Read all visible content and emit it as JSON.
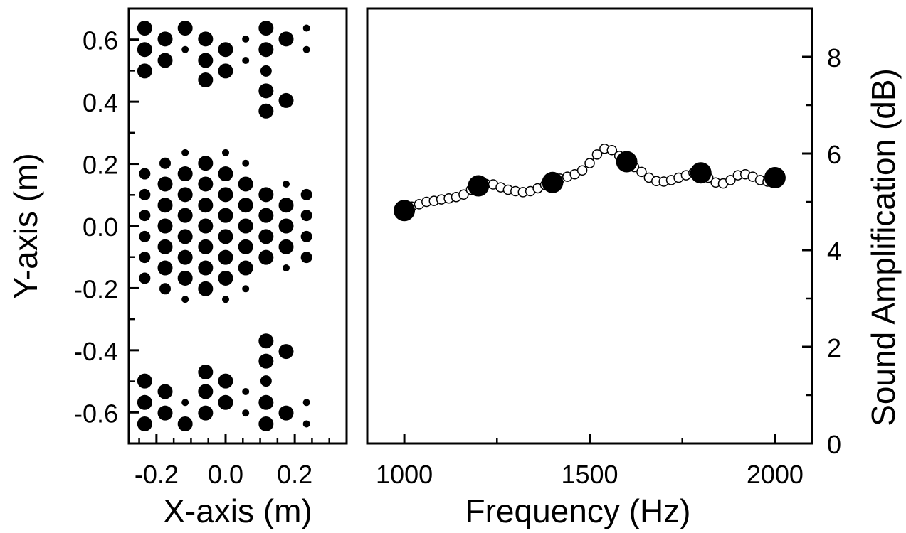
{
  "chart_data": [
    {
      "type": "scatter",
      "xlabel": "X-axis (m)",
      "ylabel": "Y-axis (m)",
      "xlim": [
        -0.28,
        0.35
      ],
      "ylim": [
        -0.7,
        0.7
      ],
      "xticks": [
        -0.2,
        0.0,
        0.2
      ],
      "xtick_labels": [
        "-0.2",
        "0.0",
        "0.2"
      ],
      "xminor": [
        -0.25,
        -0.15,
        -0.1,
        -0.05,
        0.05,
        0.1,
        0.15,
        0.25,
        0.3
      ],
      "yticks": [
        -0.6,
        -0.4,
        -0.2,
        0.0,
        0.2,
        0.4,
        0.6
      ],
      "ytick_labels": [
        "-0.6",
        "-0.4",
        "-0.2",
        "0.0",
        "0.2",
        "0.4",
        "0.6"
      ],
      "yminor": [
        -0.5,
        -0.3,
        -0.1,
        0.1,
        0.3,
        0.5
      ],
      "point_color": "#000000",
      "point_scale": "relative marker size 1-3",
      "series": [
        {
          "points": [
            {
              "x": -0.234,
              "y": 0.637,
              "size": 3
            },
            {
              "x": -0.234,
              "y": 0.568,
              "size": 3
            },
            {
              "x": -0.234,
              "y": 0.499,
              "size": 3
            },
            {
              "x": -0.175,
              "y": 0.602,
              "size": 3
            },
            {
              "x": -0.175,
              "y": 0.533,
              "size": 3
            },
            {
              "x": -0.117,
              "y": 0.637,
              "size": 3
            },
            {
              "x": -0.117,
              "y": 0.568,
              "size": 1
            },
            {
              "x": -0.058,
              "y": 0.602,
              "size": 3
            },
            {
              "x": -0.058,
              "y": 0.533,
              "size": 3
            },
            {
              "x": -0.058,
              "y": 0.47,
              "size": 3
            },
            {
              "x": 0.0,
              "y": 0.568,
              "size": 3
            },
            {
              "x": 0.0,
              "y": 0.499,
              "size": 3
            },
            {
              "x": 0.058,
              "y": 0.602,
              "size": 1
            },
            {
              "x": 0.058,
              "y": 0.533,
              "size": 1
            },
            {
              "x": 0.117,
              "y": 0.637,
              "size": 3
            },
            {
              "x": 0.117,
              "y": 0.568,
              "size": 3
            },
            {
              "x": 0.117,
              "y": 0.499,
              "size": 2
            },
            {
              "x": 0.117,
              "y": 0.435,
              "size": 3
            },
            {
              "x": 0.117,
              "y": 0.37,
              "size": 3
            },
            {
              "x": 0.175,
              "y": 0.602,
              "size": 3
            },
            {
              "x": 0.175,
              "y": 0.404,
              "size": 3
            },
            {
              "x": 0.234,
              "y": 0.637,
              "size": 1
            },
            {
              "x": 0.234,
              "y": 0.568,
              "size": 1
            },
            {
              "x": -0.234,
              "y": 0.168,
              "size": 2
            },
            {
              "x": -0.234,
              "y": 0.101,
              "size": 2
            },
            {
              "x": -0.234,
              "y": 0.034,
              "size": 2
            },
            {
              "x": -0.234,
              "y": -0.034,
              "size": 2
            },
            {
              "x": -0.234,
              "y": -0.101,
              "size": 2
            },
            {
              "x": -0.234,
              "y": -0.168,
              "size": 2
            },
            {
              "x": -0.175,
              "y": 0.202,
              "size": 2
            },
            {
              "x": -0.175,
              "y": 0.135,
              "size": 3
            },
            {
              "x": -0.175,
              "y": 0.067,
              "size": 3
            },
            {
              "x": -0.175,
              "y": 0.0,
              "size": 3
            },
            {
              "x": -0.175,
              "y": -0.067,
              "size": 3
            },
            {
              "x": -0.175,
              "y": -0.135,
              "size": 3
            },
            {
              "x": -0.175,
              "y": -0.202,
              "size": 2
            },
            {
              "x": -0.117,
              "y": 0.236,
              "size": 1
            },
            {
              "x": -0.117,
              "y": 0.168,
              "size": 3
            },
            {
              "x": -0.117,
              "y": 0.101,
              "size": 3
            },
            {
              "x": -0.117,
              "y": 0.034,
              "size": 3
            },
            {
              "x": -0.117,
              "y": -0.034,
              "size": 3
            },
            {
              "x": -0.117,
              "y": -0.101,
              "size": 3
            },
            {
              "x": -0.117,
              "y": -0.168,
              "size": 3
            },
            {
              "x": -0.117,
              "y": -0.236,
              "size": 1
            },
            {
              "x": -0.058,
              "y": 0.202,
              "size": 3
            },
            {
              "x": -0.058,
              "y": 0.135,
              "size": 3
            },
            {
              "x": -0.058,
              "y": 0.067,
              "size": 3
            },
            {
              "x": -0.058,
              "y": 0.0,
              "size": 3
            },
            {
              "x": -0.058,
              "y": -0.067,
              "size": 3
            },
            {
              "x": -0.058,
              "y": -0.135,
              "size": 3
            },
            {
              "x": -0.058,
              "y": -0.202,
              "size": 3
            },
            {
              "x": 0.0,
              "y": 0.236,
              "size": 1
            },
            {
              "x": 0.0,
              "y": 0.168,
              "size": 3
            },
            {
              "x": 0.0,
              "y": 0.101,
              "size": 3
            },
            {
              "x": 0.0,
              "y": 0.034,
              "size": 3
            },
            {
              "x": 0.0,
              "y": -0.034,
              "size": 3
            },
            {
              "x": 0.0,
              "y": -0.101,
              "size": 3
            },
            {
              "x": 0.0,
              "y": -0.168,
              "size": 3
            },
            {
              "x": 0.0,
              "y": -0.236,
              "size": 1
            },
            {
              "x": 0.058,
              "y": 0.202,
              "size": 1
            },
            {
              "x": 0.058,
              "y": 0.135,
              "size": 3
            },
            {
              "x": 0.058,
              "y": 0.067,
              "size": 3
            },
            {
              "x": 0.058,
              "y": 0.0,
              "size": 3
            },
            {
              "x": 0.058,
              "y": -0.067,
              "size": 3
            },
            {
              "x": 0.058,
              "y": -0.135,
              "size": 3
            },
            {
              "x": 0.058,
              "y": -0.202,
              "size": 1
            },
            {
              "x": 0.117,
              "y": 0.101,
              "size": 3
            },
            {
              "x": 0.117,
              "y": 0.034,
              "size": 3
            },
            {
              "x": 0.117,
              "y": -0.034,
              "size": 3
            },
            {
              "x": 0.117,
              "y": -0.101,
              "size": 3
            },
            {
              "x": 0.175,
              "y": 0.135,
              "size": 1
            },
            {
              "x": 0.175,
              "y": 0.067,
              "size": 3
            },
            {
              "x": 0.175,
              "y": 0.0,
              "size": 3
            },
            {
              "x": 0.175,
              "y": -0.067,
              "size": 3
            },
            {
              "x": 0.175,
              "y": -0.135,
              "size": 1
            },
            {
              "x": 0.234,
              "y": 0.101,
              "size": 2
            },
            {
              "x": 0.234,
              "y": 0.034,
              "size": 2
            },
            {
              "x": 0.234,
              "y": -0.034,
              "size": 2
            },
            {
              "x": 0.234,
              "y": -0.101,
              "size": 2
            },
            {
              "x": -0.234,
              "y": -0.499,
              "size": 3
            },
            {
              "x": -0.234,
              "y": -0.568,
              "size": 3
            },
            {
              "x": -0.234,
              "y": -0.637,
              "size": 3
            },
            {
              "x": -0.175,
              "y": -0.533,
              "size": 3
            },
            {
              "x": -0.175,
              "y": -0.602,
              "size": 3
            },
            {
              "x": -0.117,
              "y": -0.568,
              "size": 1
            },
            {
              "x": -0.117,
              "y": -0.637,
              "size": 3
            },
            {
              "x": -0.058,
              "y": -0.47,
              "size": 3
            },
            {
              "x": -0.058,
              "y": -0.533,
              "size": 3
            },
            {
              "x": -0.058,
              "y": -0.602,
              "size": 3
            },
            {
              "x": 0.0,
              "y": -0.499,
              "size": 3
            },
            {
              "x": 0.0,
              "y": -0.568,
              "size": 3
            },
            {
              "x": 0.058,
              "y": -0.533,
              "size": 1
            },
            {
              "x": 0.058,
              "y": -0.602,
              "size": 1
            },
            {
              "x": 0.117,
              "y": -0.37,
              "size": 3
            },
            {
              "x": 0.117,
              "y": -0.435,
              "size": 3
            },
            {
              "x": 0.117,
              "y": -0.499,
              "size": 2
            },
            {
              "x": 0.117,
              "y": -0.568,
              "size": 3
            },
            {
              "x": 0.117,
              "y": -0.637,
              "size": 3
            },
            {
              "x": 0.175,
              "y": -0.404,
              "size": 3
            },
            {
              "x": 0.175,
              "y": -0.602,
              "size": 3
            },
            {
              "x": 0.234,
              "y": -0.568,
              "size": 1
            },
            {
              "x": 0.234,
              "y": -0.637,
              "size": 1
            }
          ]
        }
      ]
    },
    {
      "type": "line",
      "xlabel": "Frequency (Hz)",
      "ylabel": "Sound Amplification (dB)",
      "ylabel_side": "right",
      "xlim": [
        900,
        2100
      ],
      "ylim": [
        0,
        9
      ],
      "xticks": [
        1000,
        1500,
        2000
      ],
      "xtick_labels": [
        "1000",
        "1500",
        "2000"
      ],
      "xminor": [
        1250,
        1750
      ],
      "yticks": [
        0,
        2,
        4,
        6,
        8
      ],
      "ytick_labels": [
        "0",
        "2",
        "4",
        "6",
        "8"
      ],
      "yminor": [
        1,
        3,
        5,
        7,
        9
      ],
      "series": [
        {
          "marker": "open-circle",
          "color": "#000000",
          "x": [
            1000,
            1020,
            1040,
            1060,
            1080,
            1100,
            1120,
            1140,
            1160,
            1180,
            1200,
            1220,
            1240,
            1260,
            1280,
            1300,
            1320,
            1340,
            1360,
            1380,
            1400,
            1420,
            1440,
            1460,
            1480,
            1500,
            1520,
            1540,
            1560,
            1580,
            1600,
            1620,
            1640,
            1660,
            1680,
            1700,
            1720,
            1740,
            1760,
            1780,
            1800,
            1820,
            1840,
            1860,
            1880,
            1900,
            1920,
            1940,
            1960,
            1980,
            2000
          ],
          "y": [
            4.85,
            4.9,
            4.95,
            5.0,
            5.02,
            5.05,
            5.07,
            5.1,
            5.15,
            5.25,
            5.33,
            5.37,
            5.36,
            5.3,
            5.25,
            5.22,
            5.2,
            5.22,
            5.28,
            5.35,
            5.42,
            5.48,
            5.52,
            5.57,
            5.65,
            5.8,
            5.98,
            6.1,
            6.07,
            5.95,
            5.83,
            5.72,
            5.62,
            5.5,
            5.43,
            5.42,
            5.45,
            5.5,
            5.55,
            5.6,
            5.6,
            5.5,
            5.4,
            5.38,
            5.45,
            5.55,
            5.57,
            5.52,
            5.45,
            5.42,
            5.5
          ]
        },
        {
          "marker": "filled-circle",
          "color": "#000000",
          "x": [
            1000,
            1200,
            1400,
            1600,
            1800,
            2000
          ],
          "y": [
            4.82,
            5.33,
            5.4,
            5.83,
            5.6,
            5.5
          ]
        }
      ]
    }
  ]
}
